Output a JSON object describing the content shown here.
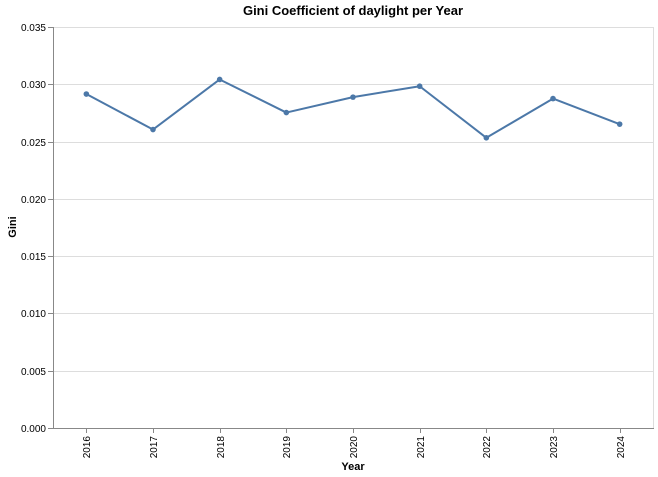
{
  "chart_data": {
    "type": "line",
    "title": "Gini Coefficient of daylight per Year",
    "xlabel": "Year",
    "ylabel": "Gini",
    "categories": [
      "2016",
      "2017",
      "2018",
      "2019",
      "2020",
      "2021",
      "2022",
      "2023",
      "2024"
    ],
    "series": [
      {
        "values": [
          0.02915,
          0.02605,
          0.03042,
          0.02753,
          0.02888,
          0.02983,
          0.02533,
          0.02875,
          0.02652
        ]
      }
    ],
    "ylim": [
      0,
      0.035
    ],
    "yticks": [
      "0.000",
      "0.005",
      "0.010",
      "0.015",
      "0.020",
      "0.025",
      "0.030",
      "0.035"
    ],
    "grid": "horizontal",
    "color": "#4c78a8"
  }
}
